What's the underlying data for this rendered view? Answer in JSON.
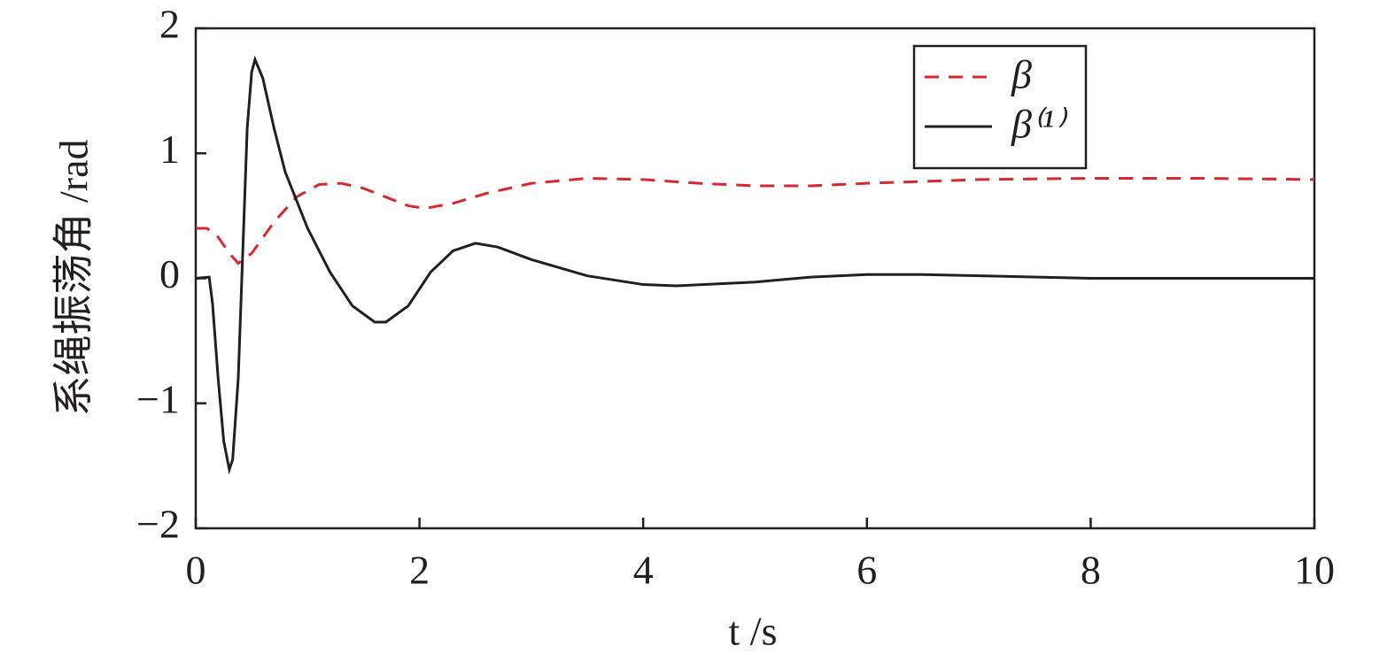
{
  "chart_data": {
    "type": "line",
    "x_label": "t /s",
    "y_label": "系绳振荡角 /rad",
    "xlim": [
      0,
      10
    ],
    "xticks": [
      0,
      2,
      4,
      6,
      8,
      10
    ],
    "ylim": [
      -2,
      2
    ],
    "yticks": [
      {
        "value": -2,
        "label": "−2"
      },
      {
        "value": -1,
        "label": "−1"
      },
      0,
      1,
      2
    ],
    "legend": "upper right",
    "series": [
      {
        "name": "β",
        "color": "#d7282f",
        "dash": true,
        "x": [
          0,
          0.1,
          0.2,
          0.3,
          0.38,
          0.5,
          0.7,
          0.9,
          1.1,
          1.3,
          1.5,
          1.7,
          1.9,
          2.05,
          2.3,
          2.6,
          3.0,
          3.5,
          4.0,
          4.5,
          5.0,
          5.5,
          6.0,
          7.0,
          8.0,
          9.0,
          10.0
        ],
        "values": [
          0.4,
          0.4,
          0.33,
          0.2,
          0.12,
          0.2,
          0.45,
          0.65,
          0.75,
          0.76,
          0.72,
          0.65,
          0.58,
          0.56,
          0.6,
          0.68,
          0.76,
          0.8,
          0.79,
          0.76,
          0.74,
          0.74,
          0.76,
          0.79,
          0.8,
          0.8,
          0.79
        ]
      },
      {
        "name": "β⁽¹⁾",
        "color": "#231f20",
        "dash": false,
        "x": [
          0,
          0.12,
          0.15,
          0.2,
          0.25,
          0.3,
          0.33,
          0.38,
          0.42,
          0.46,
          0.5,
          0.53,
          0.6,
          0.7,
          0.8,
          1.0,
          1.2,
          1.4,
          1.6,
          1.7,
          1.9,
          2.1,
          2.3,
          2.5,
          2.7,
          3.0,
          3.5,
          4.0,
          4.3,
          5.0,
          5.5,
          6.0,
          6.5,
          7.0,
          8.0,
          9.0,
          10.0
        ],
        "values": [
          0,
          0.01,
          -0.2,
          -0.8,
          -1.3,
          -1.53,
          -1.45,
          -0.8,
          0.2,
          1.2,
          1.65,
          1.75,
          1.6,
          1.2,
          0.85,
          0.4,
          0.05,
          -0.22,
          -0.35,
          -0.35,
          -0.22,
          0.05,
          0.22,
          0.28,
          0.25,
          0.15,
          0.02,
          -0.05,
          -0.06,
          -0.03,
          0.01,
          0.03,
          0.03,
          0.02,
          0,
          0,
          0
        ]
      }
    ]
  }
}
